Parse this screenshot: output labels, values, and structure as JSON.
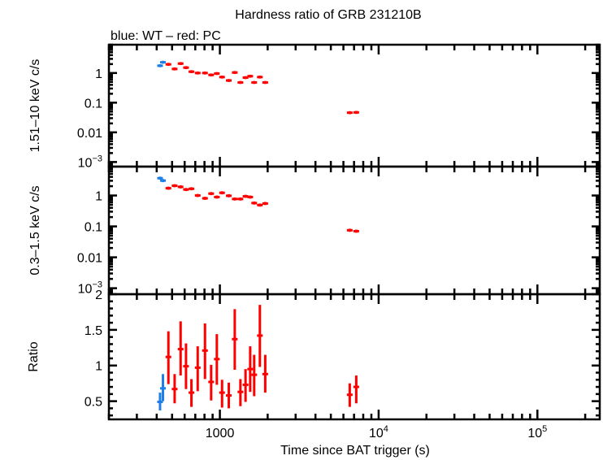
{
  "chart_data": {
    "type": "scatter",
    "title": "Hardness ratio of GRB 231210B",
    "subtitle": "blue: WT – red: PC",
    "xlabel": "Time since BAT trigger (s)",
    "xscale": "log",
    "xlim": [
      200,
      247000
    ],
    "xticks": [
      {
        "v": 1000,
        "label": "1000"
      },
      {
        "v": 10000,
        "label": "10",
        "exp": "4"
      },
      {
        "v": 100000,
        "label": "10",
        "exp": "5"
      }
    ],
    "colors": {
      "WT": "#1e7fe6",
      "PC": "#ff0000"
    },
    "xerr_dex": 0.018,
    "panels": [
      {
        "name": "hard",
        "ylabel": "1.51–10 keV c/s",
        "yscale": "log",
        "ylim": [
          0.0007,
          9
        ],
        "yticks": [
          {
            "v": 1,
            "label": "1"
          },
          {
            "v": 0.1,
            "label": "0.1"
          },
          {
            "v": 0.01,
            "label": "0.01"
          },
          {
            "v": 0.001,
            "label": "10",
            "exp": "−3"
          }
        ],
        "yerr_dex": 0.05,
        "series": [
          {
            "name": "WT",
            "t": [
              420,
              438
            ],
            "y": [
              1.76,
              2.3
            ]
          },
          {
            "name": "PC",
            "t": [
              474,
              519,
              566,
              612,
              662,
              725,
              806,
              881,
              957,
              1032,
              1138,
              1241,
              1347,
              1451,
              1552,
              1645,
              1786,
              1931,
              6577,
              7229
            ],
            "y": [
              1.96,
              1.37,
              2.08,
              1.52,
              1.11,
              1.0,
              1.0,
              0.86,
              0.96,
              0.73,
              0.56,
              1.04,
              0.48,
              0.7,
              0.78,
              0.48,
              0.73,
              0.48,
              0.046,
              0.047
            ]
          }
        ]
      },
      {
        "name": "soft",
        "ylabel": "0.3–1.5 keV c/s",
        "yscale": "log",
        "ylim": [
          0.00064,
          8.6
        ],
        "yticks": [
          {
            "v": 1,
            "label": "1"
          },
          {
            "v": 0.1,
            "label": "0.1"
          },
          {
            "v": 0.01,
            "label": "0.01"
          },
          {
            "v": 0.001,
            "label": "10",
            "exp": "−3"
          }
        ],
        "yerr_dex": 0.05,
        "series": [
          {
            "name": "WT",
            "t": [
              420,
              438
            ],
            "y": [
              3.63,
              3.03
            ]
          },
          {
            "name": "PC",
            "t": [
              474,
              519,
              566,
              612,
              662,
              725,
              806,
              881,
              957,
              1032,
              1138,
              1241,
              1347,
              1451,
              1552,
              1645,
              1786,
              1931,
              6577,
              7229
            ],
            "y": [
              1.72,
              2.07,
              1.9,
              1.56,
              1.65,
              1.0,
              0.81,
              1.15,
              0.89,
              1.22,
              0.98,
              0.77,
              0.77,
              0.94,
              0.89,
              0.57,
              0.49,
              0.55,
              0.075,
              0.07
            ]
          }
        ]
      },
      {
        "name": "ratio",
        "ylabel": "Ratio",
        "yscale": "linear",
        "ylim": [
          0.245,
          2.0
        ],
        "yticks": [
          {
            "v": 0.5,
            "label": "0.5"
          },
          {
            "v": 1,
            "label": "1"
          },
          {
            "v": 1.5,
            "label": "1.5"
          },
          {
            "v": 2,
            "label": "2"
          }
        ],
        "series": [
          {
            "name": "WT",
            "t": [
              420,
              438
            ],
            "y": [
              0.49,
              0.68
            ],
            "ylo": [
              0.37,
              0.5
            ],
            "yhi": [
              0.62,
              0.88
            ]
          },
          {
            "name": "PC",
            "t": [
              474,
              519,
              566,
              612,
              662,
              725,
              806,
              881,
              957,
              1032,
              1138,
              1241,
              1347,
              1451,
              1552,
              1645,
              1786,
              1931,
              6577,
              7229
            ],
            "y": [
              1.12,
              0.67,
              1.23,
              0.99,
              0.62,
              0.97,
              1.21,
              0.77,
              1.09,
              0.62,
              0.58,
              1.37,
              0.63,
              0.73,
              0.95,
              0.87,
              1.42,
              0.88,
              0.59,
              0.7
            ],
            "ylo": [
              0.74,
              0.47,
              0.86,
              0.67,
              0.42,
              0.64,
              0.81,
              0.51,
              0.73,
              0.41,
              0.4,
              0.94,
              0.43,
              0.49,
              0.63,
              0.57,
              0.98,
              0.62,
              0.42,
              0.47
            ],
            "yhi": [
              1.48,
              0.88,
              1.62,
              1.31,
              0.81,
              1.27,
              1.59,
              1.01,
              1.44,
              0.8,
              0.76,
              1.79,
              0.81,
              0.95,
              1.27,
              1.15,
              1.85,
              1.15,
              0.75,
              0.86
            ]
          }
        ]
      }
    ]
  }
}
